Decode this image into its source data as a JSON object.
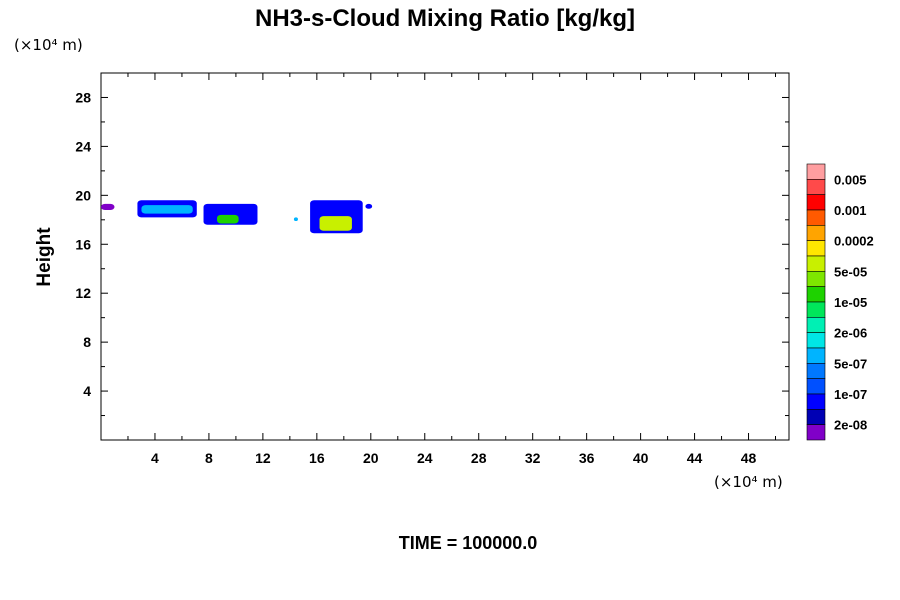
{
  "chart_data": {
    "type": "heatmap",
    "title": "NH3-s-Cloud Mixing Ratio [kg/kg]",
    "ylabel": "Height",
    "y_unit": "(×10⁴ m)",
    "x_unit": "(×10⁴ m)",
    "x_ticks": [
      "4",
      "8",
      "12",
      "16",
      "20",
      "24",
      "28",
      "32",
      "36",
      "40",
      "44",
      "48"
    ],
    "y_ticks": [
      "4",
      "8",
      "12",
      "16",
      "20",
      "24",
      "28"
    ],
    "xlim": [
      0,
      51
    ],
    "ylim": [
      0,
      30
    ],
    "footer": "TIME = 100000.0",
    "colorbar": {
      "labels": [
        "0.005",
        "0.001",
        "0.0002",
        "5e-05",
        "1e-05",
        "2e-06",
        "5e-07",
        "1e-07",
        "2e-08"
      ],
      "colors": [
        "#ff9ea0",
        "#ff4a4a",
        "#ff0000",
        "#ff5a00",
        "#ffa400",
        "#ffe600",
        "#c8f000",
        "#7ee600",
        "#1ed200",
        "#00e65a",
        "#00f0b4",
        "#00e6e6",
        "#00b4ff",
        "#0078ff",
        "#0050ff",
        "#0000ff",
        "#0000b4",
        "#8000c8"
      ]
    },
    "cloud_patches": [
      {
        "level": "1e-07",
        "color": "#0000ff",
        "x": [
          2.7,
          7.1
        ],
        "y": [
          18.2,
          19.6
        ]
      },
      {
        "level": "5e-07",
        "color": "#00b4ff",
        "x": [
          3.0,
          6.8
        ],
        "y": [
          18.5,
          19.2
        ]
      },
      {
        "level": "1e-07",
        "color": "#0000ff",
        "x": [
          7.6,
          11.6
        ],
        "y": [
          17.6,
          19.3
        ]
      },
      {
        "level": "1e-05",
        "color": "#1ed200",
        "x": [
          8.6,
          10.2
        ],
        "y": [
          17.7,
          18.4
        ]
      },
      {
        "level": "1e-07",
        "color": "#0000ff",
        "x": [
          15.5,
          19.4
        ],
        "y": [
          16.9,
          19.6
        ]
      },
      {
        "level": "5e-05",
        "color": "#c8f000",
        "x": [
          16.2,
          18.6
        ],
        "y": [
          17.1,
          18.3
        ]
      },
      {
        "level": "2e-08",
        "color": "#8000c8",
        "x": [
          0.0,
          1.0
        ],
        "y": [
          18.8,
          19.3
        ]
      },
      {
        "level": "5e-07",
        "color": "#00b4ff",
        "x": [
          14.3,
          14.6
        ],
        "y": [
          17.9,
          18.2
        ]
      },
      {
        "level": "1e-07",
        "color": "#0000ff",
        "x": [
          19.6,
          20.1
        ],
        "y": [
          18.9,
          19.3
        ]
      }
    ]
  }
}
